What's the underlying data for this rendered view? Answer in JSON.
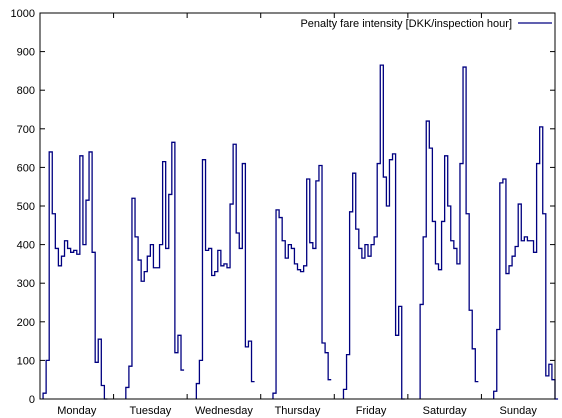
{
  "chart_data": {
    "type": "line",
    "step": true,
    "series_color": "#000080",
    "ylim": [
      0,
      1000
    ],
    "yticks": [
      0,
      100,
      200,
      300,
      400,
      500,
      600,
      700,
      800,
      900,
      1000
    ],
    "xlim": [
      0,
      168
    ],
    "day_ticks": [
      {
        "label": "Monday",
        "center": 12
      },
      {
        "label": "Tuesday",
        "center": 36
      },
      {
        "label": "Wednesday",
        "center": 60
      },
      {
        "label": "Thursday",
        "center": 84
      },
      {
        "label": "Friday",
        "center": 108
      },
      {
        "label": "Saturday",
        "center": 132
      },
      {
        "label": "Sunday",
        "center": 156
      }
    ],
    "day_boundaries": [
      24,
      48,
      72,
      96,
      120,
      144
    ],
    "legend": {
      "label": "Penalty fare intensity [DKK/inspection hour]",
      "position": "top-right"
    },
    "series": [
      {
        "name": "Penalty fare intensity [DKK/inspection hour]",
        "segments": [
          {
            "x0": 1,
            "values": [
              15,
              100,
              640,
              480,
              390,
              345,
              370,
              410,
              390,
              380,
              385,
              375,
              630,
              400,
              515,
              640,
              380,
              95,
              155,
              35,
              0
            ]
          },
          {
            "x0": 28,
            "values": [
              30,
              85,
              520,
              420,
              360,
              305,
              330,
              370,
              400,
              340,
              340,
              400,
              615,
              390,
              530,
              665,
              120,
              165,
              75
            ]
          },
          {
            "x0": 51,
            "values": [
              40,
              100,
              620,
              385,
              390,
              320,
              330,
              385,
              345,
              350,
              340,
              505,
              660,
              430,
              390,
              610,
              135,
              150,
              45
            ]
          },
          {
            "x0": 76,
            "values": [
              15,
              490,
              470,
              410,
              365,
              400,
              390,
              350,
              335,
              330,
              345,
              570,
              405,
              390,
              565,
              605,
              145,
              120,
              50
            ]
          },
          {
            "x0": 99,
            "values": [
              25,
              115,
              485,
              585,
              440,
              390,
              365,
              400,
              370,
              400,
              420,
              610,
              865,
              575,
              500,
              620,
              635,
              165,
              240,
              0
            ]
          },
          {
            "x0": 124,
            "values": [
              245,
              420,
              720,
              650,
              460,
              350,
              335,
              460,
              630,
              500,
              410,
              390,
              350,
              610,
              860,
              480,
              230,
              130,
              45
            ]
          },
          {
            "x0": 148,
            "values": [
              20,
              180,
              560,
              570,
              325,
              345,
              370,
              395,
              505,
              410,
              420,
              410,
              410,
              380,
              610,
              705,
              480,
              60,
              90,
              50,
              0
            ]
          }
        ]
      }
    ]
  }
}
